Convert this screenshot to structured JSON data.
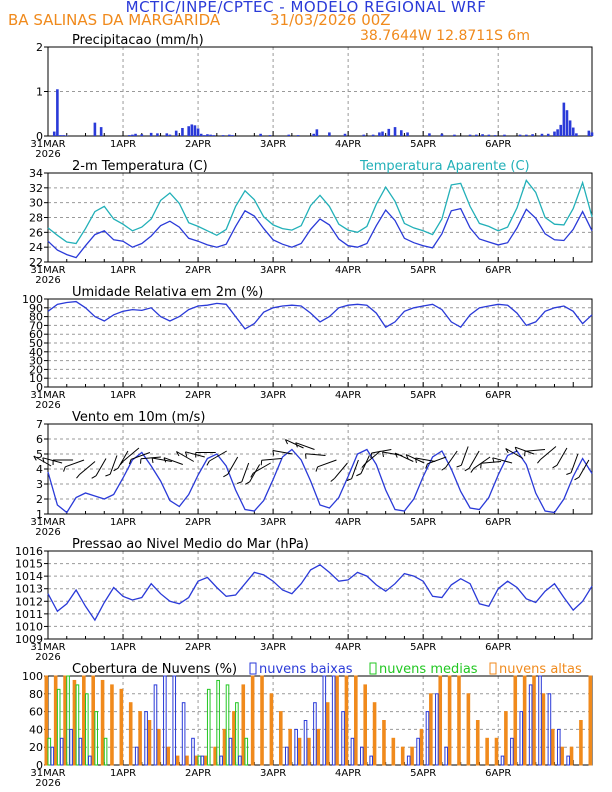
{
  "header": {
    "title": "MCTIC/INPE/CPTEC - MODELO REGIONAL WRF",
    "station": "BA SALINAS DA MARGARIDA",
    "init_date": "31/03/2026 00Z",
    "coords": "38.7644W 12.8711S 6m"
  },
  "colors": {
    "blue": "#2a3ad8",
    "cyan": "#22b0b8",
    "green": "#22c722",
    "orange": "#f08a1c",
    "grid": "#9a9a9a"
  },
  "chart_data": [
    {
      "id": "precip",
      "type": "bar",
      "title": "Precipitacao (mm/h)",
      "ylim": [
        0,
        2
      ],
      "yticks": [
        "0",
        "1",
        "2"
      ],
      "xlabels": [
        "31MAR",
        "1APR",
        "2APR",
        "3APR",
        "4APR",
        "5APR",
        "6APR"
      ],
      "xyear": "2026",
      "hours": [
        2,
        3,
        4,
        5,
        6,
        15,
        17,
        26,
        27,
        28,
        30,
        33,
        35,
        38,
        39,
        41,
        43,
        45,
        46,
        47,
        48,
        49,
        50,
        51,
        52,
        53,
        56,
        58,
        59,
        68,
        71,
        77,
        80,
        85,
        86,
        90,
        95,
        101,
        104,
        106,
        107,
        109,
        111,
        113,
        115,
        122,
        126,
        130,
        135,
        137,
        139,
        141,
        143,
        146,
        151,
        153,
        155,
        158,
        160,
        162,
        163,
        164,
        165,
        166,
        167,
        168,
        169,
        173,
        174
      ],
      "values": [
        0.1,
        1.05,
        0.02,
        0.02,
        0.01,
        0.3,
        0.2,
        0.02,
        0.03,
        0.05,
        0.04,
        0.07,
        0.06,
        0.06,
        0.03,
        0.12,
        0.18,
        0.22,
        0.26,
        0.24,
        0.17,
        0.05,
        0.02,
        0.04,
        0.03,
        0.02,
        0.02,
        0.03,
        0.02,
        0.05,
        0.02,
        0.03,
        0.02,
        0.05,
        0.15,
        0.08,
        0.05,
        0.03,
        0.03,
        0.08,
        0.1,
        0.16,
        0.2,
        0.13,
        0.08,
        0.06,
        0.05,
        0.03,
        0.03,
        0.03,
        0.04,
        0.03,
        0.02,
        0.03,
        0.03,
        0.03,
        0.04,
        0.05,
        0.05,
        0.1,
        0.15,
        0.25,
        0.75,
        0.58,
        0.35,
        0.19,
        0.06,
        0.12,
        0.08
      ]
    },
    {
      "id": "temp",
      "type": "line",
      "title": "2-m Temperatura (C)",
      "legend_series2": "Temperatura Aparente (C)",
      "ylim": [
        22,
        34
      ],
      "yticks": [
        "22",
        "24",
        "26",
        "28",
        "30",
        "32",
        "34"
      ],
      "xlabels": [
        "31MAR",
        "1APR",
        "2APR",
        "3APR",
        "4APR",
        "5APR",
        "6APR"
      ],
      "xyear": "2026",
      "x": [
        0,
        3,
        6,
        9,
        12,
        15,
        18,
        21,
        24,
        27,
        30,
        33,
        36,
        39,
        42,
        45,
        48,
        51,
        54,
        57,
        60,
        63,
        66,
        69,
        72,
        75,
        78,
        81,
        84,
        87,
        90,
        93,
        96,
        99,
        102,
        105,
        108,
        111,
        114,
        117,
        120,
        123,
        126,
        129,
        132,
        135,
        138,
        141,
        144,
        147,
        150,
        153,
        156,
        159,
        162,
        165,
        168,
        171,
        174
      ],
      "series": [
        {
          "name": "2-m Temperatura (C)",
          "values": [
            24.8,
            23.6,
            23.0,
            22.6,
            24.2,
            25.7,
            26.2,
            25.0,
            24.8,
            24.0,
            24.5,
            25.5,
            26.9,
            27.5,
            26.7,
            25.2,
            24.8,
            24.3,
            24.0,
            24.4,
            26.8,
            28.9,
            28.2,
            26.5,
            25.0,
            24.4,
            24.0,
            24.5,
            26.4,
            27.8,
            27.0,
            25.1,
            24.2,
            24.0,
            24.5,
            26.9,
            29.0,
            27.6,
            25.2,
            24.6,
            24.2,
            23.9,
            25.8,
            28.9,
            29.2,
            26.6,
            25.1,
            24.7,
            24.3,
            24.6,
            26.6,
            29.1,
            27.9,
            25.8,
            25.0,
            24.9,
            26.4,
            28.8,
            26.2
          ]
        },
        {
          "name": "Temperatura Aparente (C)",
          "values": [
            26.6,
            25.6,
            24.7,
            24.5,
            26.5,
            28.8,
            29.5,
            27.8,
            27.1,
            26.2,
            26.7,
            27.8,
            30.3,
            31.3,
            29.9,
            27.3,
            26.8,
            26.2,
            25.6,
            26.4,
            29.5,
            31.6,
            30.4,
            28.1,
            27.0,
            26.5,
            26.3,
            26.9,
            29.6,
            31.0,
            29.5,
            27.1,
            26.3,
            26.0,
            26.8,
            29.8,
            32.1,
            30.2,
            27.2,
            26.6,
            26.2,
            25.7,
            27.8,
            32.4,
            32.6,
            29.5,
            27.2,
            26.8,
            26.2,
            26.7,
            29.3,
            33.0,
            31.4,
            28.0,
            27.1,
            27.0,
            29.2,
            32.7,
            28.1
          ]
        }
      ]
    },
    {
      "id": "rh",
      "type": "line",
      "title": "Umidade Relativa em 2m (%)",
      "ylim": [
        0,
        100
      ],
      "yticks": [
        "0",
        "10",
        "20",
        "30",
        "40",
        "50",
        "60",
        "70",
        "80",
        "90",
        "100"
      ],
      "xlabels": [
        "31MAR",
        "1APR",
        "2APR",
        "3APR",
        "4APR",
        "5APR",
        "6APR"
      ],
      "xyear": "2026",
      "x": [
        0,
        3,
        6,
        9,
        12,
        15,
        18,
        21,
        24,
        27,
        30,
        33,
        36,
        39,
        42,
        45,
        48,
        51,
        54,
        57,
        60,
        63,
        66,
        69,
        72,
        75,
        78,
        81,
        84,
        87,
        90,
        93,
        96,
        99,
        102,
        105,
        108,
        111,
        114,
        117,
        120,
        123,
        126,
        129,
        132,
        135,
        138,
        141,
        144,
        147,
        150,
        153,
        156,
        159,
        162,
        165,
        168,
        171,
        174
      ],
      "series": [
        {
          "name": "Umidade Relativa em 2m (%)",
          "values": [
            86,
            94,
            96,
            97,
            90,
            80,
            75,
            82,
            86,
            88,
            87,
            90,
            80,
            75,
            80,
            88,
            92,
            93,
            95,
            94,
            80,
            66,
            72,
            85,
            90,
            92,
            93,
            92,
            84,
            74,
            80,
            90,
            93,
            94,
            93,
            84,
            68,
            74,
            86,
            90,
            92,
            94,
            88,
            74,
            68,
            82,
            90,
            92,
            94,
            93,
            84,
            70,
            74,
            86,
            90,
            92,
            86,
            72,
            82
          ]
        }
      ]
    },
    {
      "id": "wind",
      "type": "line",
      "title": "Vento em 10m (m/s)",
      "ylim": [
        1,
        7
      ],
      "yticks": [
        "1",
        "2",
        "3",
        "4",
        "5",
        "6",
        "7"
      ],
      "xlabels": [
        "31MAR",
        "1APR",
        "2APR",
        "3APR",
        "4APR",
        "5APR",
        "6APR"
      ],
      "xyear": "2026",
      "x": [
        0,
        3,
        6,
        9,
        12,
        15,
        18,
        21,
        24,
        27,
        30,
        33,
        36,
        39,
        42,
        45,
        48,
        51,
        54,
        57,
        60,
        63,
        66,
        69,
        72,
        75,
        78,
        81,
        84,
        87,
        90,
        93,
        96,
        99,
        102,
        105,
        108,
        111,
        114,
        117,
        120,
        123,
        126,
        129,
        132,
        135,
        138,
        141,
        144,
        147,
        150,
        153,
        156,
        159,
        162,
        165,
        168,
        171,
        174
      ],
      "series": [
        {
          "name": "Vento em 10m (m/s)",
          "values": [
            3.8,
            1.6,
            1.1,
            2.1,
            2.4,
            2.2,
            2.0,
            2.3,
            3.4,
            4.6,
            5.1,
            4.2,
            3.2,
            1.9,
            1.5,
            2.3,
            3.6,
            4.7,
            5.0,
            4.2,
            2.6,
            1.3,
            1.2,
            1.9,
            3.3,
            4.8,
            5.3,
            4.6,
            3.2,
            1.6,
            1.4,
            2.1,
            3.5,
            5.0,
            5.3,
            4.3,
            2.6,
            1.3,
            1.2,
            2.0,
            3.5,
            4.8,
            5.2,
            4.0,
            2.5,
            1.4,
            1.3,
            2.1,
            3.6,
            4.9,
            5.2,
            4.3,
            2.4,
            1.2,
            1.1,
            2.0,
            3.5,
            4.7,
            3.7
          ]
        }
      ],
      "barb_speed": [
        4.2,
        4.4,
        4.6,
        4.6,
        4.5,
        4.7,
        4.9,
        5.2,
        5.4,
        5.1,
        4.8,
        4.5,
        4.3,
        4.5,
        4.8,
        5.1,
        5.2,
        4.8,
        4.4,
        4.3,
        4.4,
        4.7,
        5.0,
        5.4,
        5.3,
        4.9,
        4.6,
        4.4,
        4.6,
        4.9,
        5.2,
        5.3,
        4.9,
        4.5,
        4.4,
        4.5,
        4.8,
        5.2,
        5.5,
        5.2,
        4.8,
        4.5,
        4.4,
        4.7,
        5.0,
        5.3,
        5.5,
        5.4,
        5.0,
        4.6
      ],
      "barb_dir": [
        60,
        75,
        90,
        110,
        130,
        150,
        160,
        150,
        130,
        110,
        95,
        80,
        70,
        60,
        75,
        90,
        120,
        150,
        160,
        150,
        120,
        95,
        80,
        65,
        70,
        85,
        110,
        140,
        160,
        155,
        130,
        100,
        80,
        65,
        65,
        80,
        110,
        145,
        160,
        150,
        125,
        95,
        75,
        60,
        70,
        95,
        130,
        150,
        160,
        150
      ]
    },
    {
      "id": "press",
      "type": "line",
      "title": "Pressao ao Nivel Medio do Mar (hPa)",
      "ylim": [
        1009,
        1016
      ],
      "yticks": [
        "1009",
        "1010",
        "1011",
        "1012",
        "1013",
        "1014",
        "1015",
        "1016"
      ],
      "xlabels": [
        "31MAR",
        "1APR",
        "2APR",
        "3APR",
        "4APR",
        "5APR",
        "6APR"
      ],
      "xyear": "2026",
      "x": [
        0,
        3,
        6,
        9,
        12,
        15,
        18,
        21,
        24,
        27,
        30,
        33,
        36,
        39,
        42,
        45,
        48,
        51,
        54,
        57,
        60,
        63,
        66,
        69,
        72,
        75,
        78,
        81,
        84,
        87,
        90,
        93,
        96,
        99,
        102,
        105,
        108,
        111,
        114,
        117,
        120,
        123,
        126,
        129,
        132,
        135,
        138,
        141,
        144,
        147,
        150,
        153,
        156,
        159,
        162,
        165,
        168,
        171,
        174
      ],
      "series": [
        {
          "name": "Pressao ao Nivel Medio do Mar (hPa)",
          "values": [
            1012.6,
            1011.2,
            1011.8,
            1012.9,
            1011.6,
            1010.5,
            1011.9,
            1013.1,
            1012.4,
            1012.1,
            1012.3,
            1013.4,
            1012.6,
            1012.0,
            1011.8,
            1012.3,
            1013.6,
            1013.9,
            1013.1,
            1012.4,
            1012.5,
            1013.4,
            1014.3,
            1014.1,
            1013.6,
            1012.9,
            1012.6,
            1013.4,
            1014.5,
            1014.9,
            1014.3,
            1013.6,
            1013.7,
            1014.3,
            1014.0,
            1013.3,
            1012.8,
            1013.4,
            1014.2,
            1014.0,
            1013.6,
            1012.4,
            1012.3,
            1013.3,
            1013.8,
            1013.4,
            1011.8,
            1011.6,
            1013.0,
            1013.6,
            1013.1,
            1012.2,
            1011.9,
            1012.8,
            1013.4,
            1012.3,
            1011.3,
            1012.0,
            1013.2
          ]
        }
      ]
    },
    {
      "id": "clouds",
      "type": "bar",
      "title": "Cobertura de Nuvens (%)",
      "legend": [
        "nuvens baixas",
        "nuvens medias",
        "nuvens altas"
      ],
      "ylim": [
        0,
        100
      ],
      "yticks": [
        "0",
        "20",
        "40",
        "60",
        "80",
        "100"
      ],
      "xlabels": [
        "31MAR",
        "1APR",
        "2APR",
        "3APR",
        "4APR",
        "5APR",
        "6APR"
      ],
      "xyear": "2026",
      "series": [
        {
          "name": "nuvens altas",
          "values": [
            100,
            100,
            100,
            95,
            100,
            100,
            95,
            90,
            85,
            70,
            60,
            50,
            40,
            20,
            10,
            10,
            10,
            10,
            20,
            40,
            60,
            90,
            100,
            100,
            80,
            60,
            40,
            30,
            30,
            40,
            70,
            100,
            100,
            100,
            90,
            70,
            50,
            30,
            20,
            20,
            40,
            80,
            100,
            100,
            100,
            80,
            50,
            30,
            30,
            60,
            100,
            100,
            100,
            80,
            40,
            20,
            20,
            50,
            100
          ]
        },
        {
          "name": "nuvens medias",
          "values": [
            30,
            85,
            100,
            90,
            80,
            60,
            30,
            0,
            0,
            0,
            0,
            0,
            0,
            0,
            0,
            0,
            10,
            85,
            95,
            90,
            70,
            30,
            0,
            0,
            0,
            0,
            0,
            0,
            0,
            0,
            0,
            0,
            0,
            0,
            0,
            0,
            0,
            0,
            0,
            0,
            0,
            0,
            0,
            0,
            0,
            0,
            0,
            0,
            0,
            0,
            0,
            0,
            0,
            0,
            0,
            0,
            0,
            0,
            0
          ]
        },
        {
          "name": "nuvens baixas",
          "values": [
            20,
            30,
            40,
            30,
            10,
            0,
            0,
            0,
            0,
            20,
            60,
            90,
            100,
            100,
            70,
            30,
            10,
            0,
            10,
            30,
            10,
            0,
            0,
            0,
            0,
            20,
            40,
            50,
            70,
            100,
            100,
            60,
            30,
            20,
            10,
            0,
            0,
            0,
            10,
            30,
            60,
            80,
            20,
            0,
            0,
            0,
            0,
            0,
            10,
            30,
            60,
            90,
            100,
            80,
            40,
            10,
            0,
            0,
            0
          ]
        }
      ]
    }
  ]
}
